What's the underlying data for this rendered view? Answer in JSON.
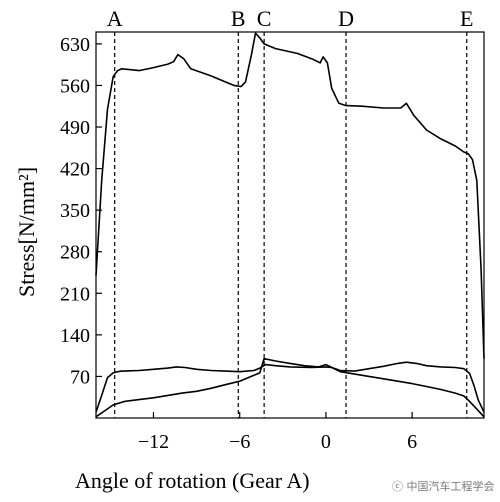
{
  "chart_data": {
    "type": "line",
    "xlabel": "Angle of rotation (Gear A)",
    "ylabel": "Stress[N/mm²]",
    "xlim": [
      -16,
      11
    ],
    "ylim": [
      0,
      650
    ],
    "x_ticks": [
      {
        "value": -12,
        "label": "−12"
      },
      {
        "value": -6,
        "label": "−6"
      },
      {
        "value": 0,
        "label": "0"
      },
      {
        "value": 6,
        "label": "6"
      }
    ],
    "y_ticks": [
      {
        "value": 70,
        "label": "70"
      },
      {
        "value": 140,
        "label": "140"
      },
      {
        "value": 210,
        "label": "210"
      },
      {
        "value": 280,
        "label": "280"
      },
      {
        "value": 350,
        "label": "350"
      },
      {
        "value": 420,
        "label": "420"
      },
      {
        "value": 490,
        "label": "490"
      },
      {
        "value": 560,
        "label": "560"
      },
      {
        "value": 630,
        "label": "630"
      }
    ],
    "markers": [
      {
        "label": "A",
        "x": -14.7
      },
      {
        "label": "B",
        "x": -6.1
      },
      {
        "label": "C",
        "x": -4.3
      },
      {
        "label": "D",
        "x": 1.4
      },
      {
        "label": "E",
        "x": 9.8
      }
    ],
    "series": [
      {
        "x": [
          -16,
          -15.6,
          -15.2,
          -14.8,
          -14.5,
          -14.2,
          -13,
          -12,
          -11,
          -10.6,
          -10.3,
          -9.9,
          -9.4,
          -8,
          -7,
          -6.4,
          -5.9,
          -5.6,
          -5.2,
          -4.9,
          -4.6,
          -4.3,
          -3.5,
          -2,
          -1,
          -0.4,
          -0.2,
          0.1,
          0.4,
          0.9,
          1.4,
          2.5,
          4,
          5.2,
          5.6,
          6.1,
          7,
          8,
          9,
          9.6,
          9.9,
          10.2,
          10.5,
          10.8,
          11
        ],
        "y": [
          240,
          400,
          520,
          575,
          585,
          588,
          585,
          590,
          596,
          600,
          612,
          605,
          588,
          576,
          566,
          560,
          558,
          566,
          610,
          648,
          640,
          630,
          622,
          614,
          605,
          598,
          608,
          598,
          555,
          530,
          526,
          525,
          522,
          522,
          530,
          510,
          485,
          470,
          458,
          448,
          445,
          435,
          400,
          250,
          100
        ]
      },
      {
        "x": [
          -16,
          -15.6,
          -15.2,
          -14.8,
          -14.5,
          -14.2,
          -13,
          -12,
          -11,
          -10.4,
          -9.8,
          -9,
          -8,
          -7,
          -6,
          -5,
          -4.6,
          -4.2,
          -3.5,
          -2.5,
          -1,
          0,
          0.4,
          1,
          2,
          3,
          4,
          5,
          5.6,
          6.3,
          7,
          8,
          9,
          9.6,
          10,
          10.3,
          10.6,
          11
        ],
        "y": [
          10,
          38,
          68,
          76,
          78,
          79,
          80,
          82,
          84,
          86,
          85,
          82,
          80,
          79,
          78,
          80,
          84,
          90,
          88,
          86,
          85,
          86,
          85,
          80,
          79,
          83,
          87,
          92,
          94,
          92,
          88,
          86,
          85,
          83,
          75,
          55,
          30,
          10
        ]
      },
      {
        "x": [
          -16,
          -15.4,
          -14.8,
          -14,
          -13,
          -12,
          -11,
          -10,
          -9,
          -8,
          -7,
          -6,
          -5.2,
          -4.6,
          -4.3,
          -3.5,
          -2.5,
          -1.5,
          -0.5,
          0,
          0.5,
          1,
          2,
          3,
          4,
          5,
          6,
          7,
          8,
          9,
          9.6,
          10,
          10.5,
          11
        ],
        "y": [
          2,
          12,
          22,
          28,
          31,
          34,
          38,
          42,
          45,
          50,
          56,
          62,
          70,
          76,
          100,
          96,
          92,
          88,
          86,
          90,
          84,
          78,
          74,
          70,
          66,
          62,
          58,
          53,
          48,
          42,
          37,
          28,
          15,
          2
        ]
      }
    ]
  },
  "watermark": {
    "text": "ⓒ 中国汽车工程学会"
  }
}
